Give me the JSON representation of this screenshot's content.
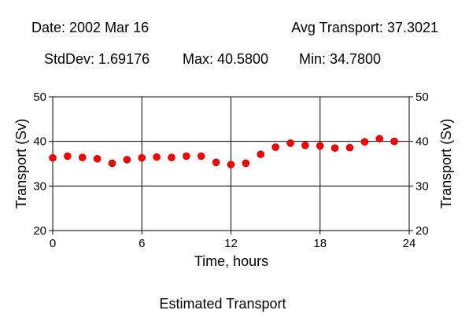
{
  "header": {
    "date": "Date: 2002 Mar 16",
    "avg": "Avg Transport: 37.3021",
    "stddev": "StdDev: 1.69176",
    "max": "Max: 40.5800",
    "min": "Min: 34.7800"
  },
  "chart_data": {
    "type": "scatter",
    "title": "Estimated Transport",
    "xlabel": "Time, hours",
    "ylabel": "Transport (Sv)",
    "xlim": [
      0,
      24
    ],
    "ylim": [
      20,
      50
    ],
    "xticks": [
      0,
      6,
      12,
      18,
      24
    ],
    "yticks": [
      20,
      30,
      40,
      50
    ],
    "grid": true,
    "point_color": "#ff0000",
    "x": [
      0,
      1,
      2,
      3,
      4,
      5,
      6,
      7,
      8,
      9,
      10,
      11,
      12,
      13,
      14,
      15,
      16,
      17,
      18,
      19,
      20,
      21,
      22,
      23
    ],
    "y": [
      36.3,
      36.7,
      36.4,
      36.1,
      35.1,
      35.9,
      36.3,
      36.5,
      36.4,
      36.7,
      36.7,
      35.3,
      34.8,
      35.1,
      37.1,
      38.7,
      39.6,
      39.1,
      39.0,
      38.5,
      38.6,
      39.9,
      40.6,
      40.0
    ]
  }
}
